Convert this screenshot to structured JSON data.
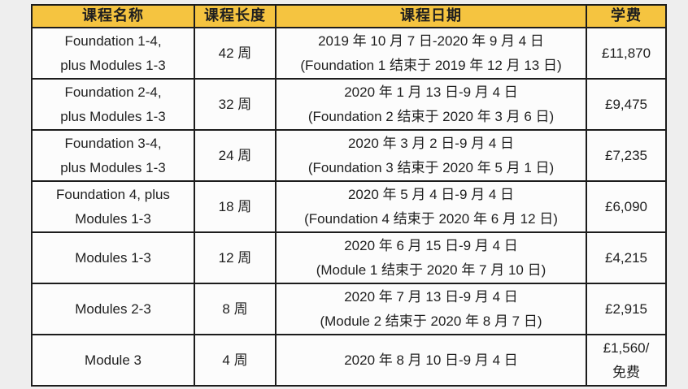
{
  "colors": {
    "page_bg": "#eeeeee",
    "header_bg": "#f5c440",
    "cell_bg": "#fcfcfc",
    "border": "#1c1c1c",
    "text": "#1f1f1f"
  },
  "table": {
    "header": {
      "course_name": "课程名称",
      "course_length": "课程长度",
      "course_dates": "课程日期",
      "tuition": "学费"
    },
    "rows": [
      {
        "name": [
          "Foundation 1-4,",
          "plus Modules 1-3"
        ],
        "length": "42 周",
        "dates": [
          "2019 年 10 月 7 日-2020 年 9 月 4 日",
          "(Foundation 1 结束于 2019 年 12 月 13 日)"
        ],
        "fee": "£11,870"
      },
      {
        "name": [
          "Foundation 2-4,",
          "plus Modules 1-3"
        ],
        "length": "32 周",
        "dates": [
          "2020 年 1 月 13 日-9 月 4 日",
          "(Foundation 2 结束于 2020 年 3 月 6 日)"
        ],
        "fee": "£9,475"
      },
      {
        "name": [
          "Foundation 3-4,",
          "plus Modules 1-3"
        ],
        "length": "24 周",
        "dates": [
          "2020 年 3 月 2 日-9 月 4 日",
          "(Foundation 3 结束于 2020 年 5 月 1 日)"
        ],
        "fee": "£7,235"
      },
      {
        "name": [
          "Foundation 4, plus",
          "Modules 1-3"
        ],
        "length": "18 周",
        "dates": [
          "2020 年 5 月 4 日-9 月 4 日",
          "(Foundation 4 结束于 2020 年 6 月 12 日)"
        ],
        "fee": "£6,090"
      },
      {
        "name": [
          "Modules 1-3"
        ],
        "length": "12 周",
        "dates": [
          "2020 年 6 月 15 日-9 月 4 日",
          "(Module 1 结束于 2020 年 7 月 10 日)"
        ],
        "fee": "£4,215"
      },
      {
        "name": [
          "Modules 2-3"
        ],
        "length": "8 周",
        "dates": [
          "2020 年 7 月 13 日-9 月 4 日",
          "(Module 2 结束于 2020 年 8 月 7 日)"
        ],
        "fee": "£2,915"
      },
      {
        "name": [
          "Module 3"
        ],
        "length": "4 周",
        "dates": [
          "2020 年 8 月 10 日-9 月 4 日"
        ],
        "fee": [
          "£1,560/",
          "免费"
        ]
      }
    ]
  }
}
